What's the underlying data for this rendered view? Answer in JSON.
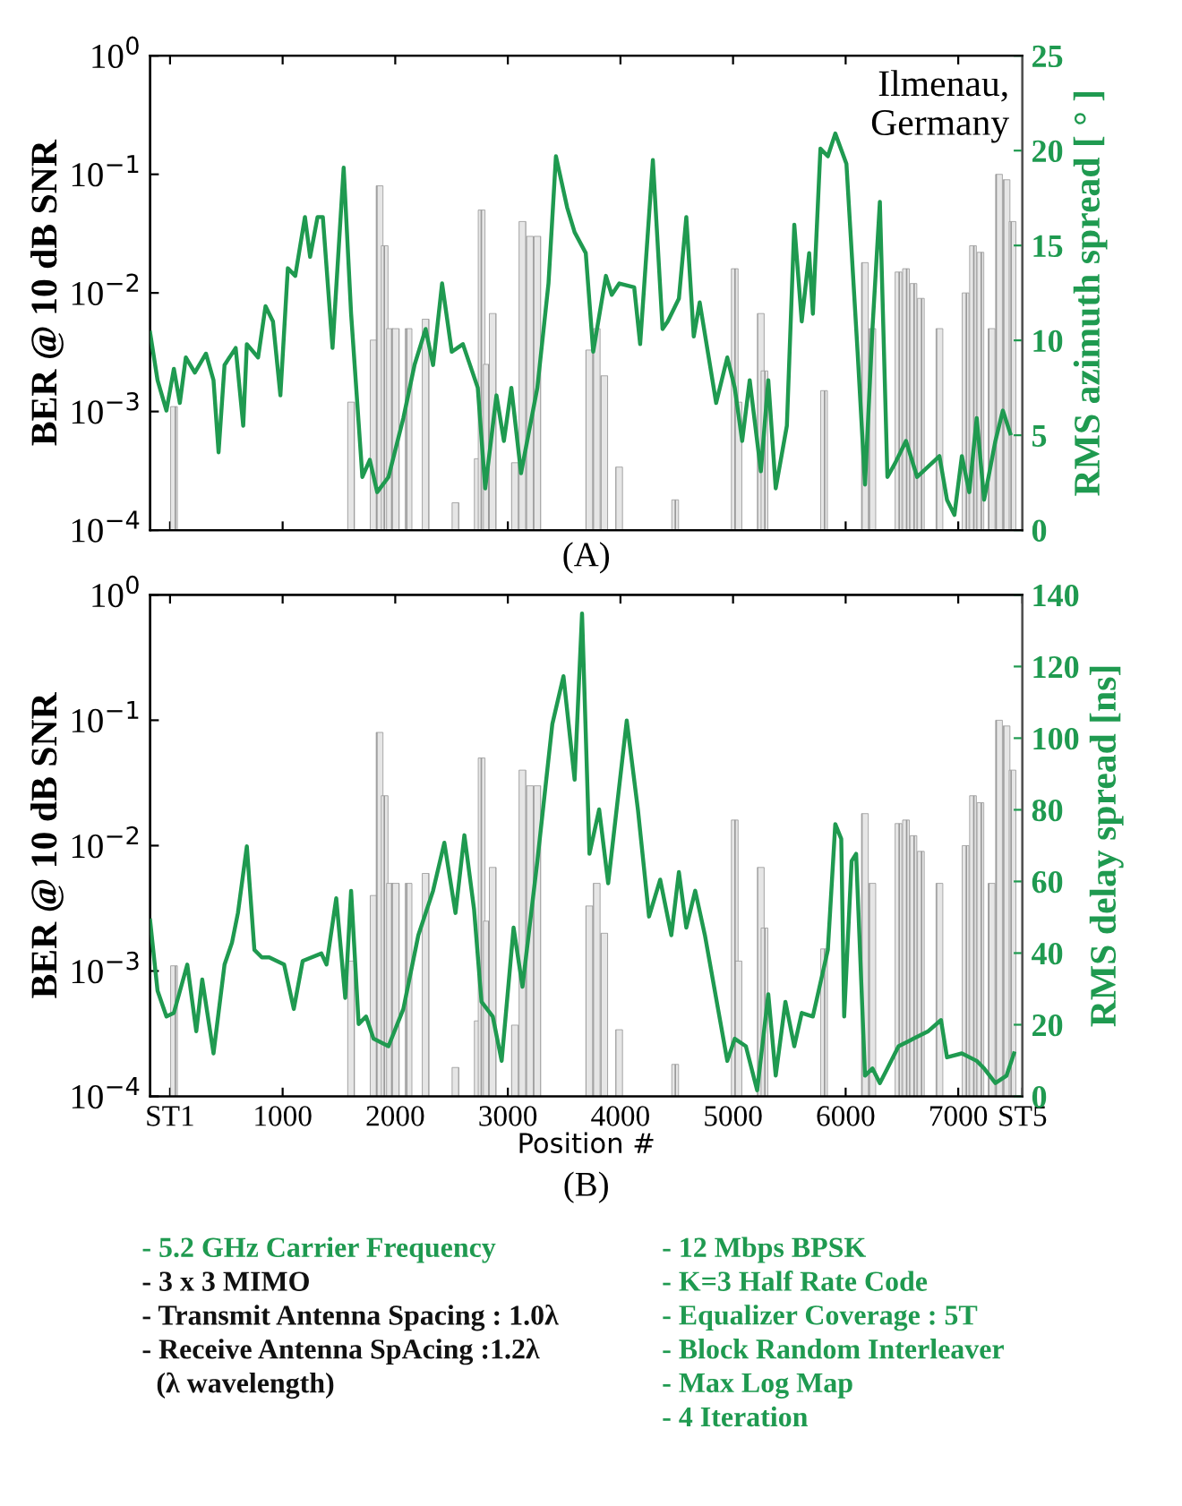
{
  "chart_data": [
    {
      "type": "bar",
      "ylabel": "BER @ 10 dB SNR",
      "y2label": "RMS azimuth spread [ ° ]",
      "annotations": [
        "Ilmenau,\nGermany",
        "(A)"
      ],
      "xlim": [
        -177,
        7570
      ],
      "xticks": [
        {
          "value": 0,
          "label": null
        },
        {
          "value": 1000,
          "label": null
        },
        {
          "value": 2000,
          "label": null
        },
        {
          "value": 3000,
          "label": null
        },
        {
          "value": 4000,
          "label": null
        },
        {
          "value": 5000,
          "label": null
        },
        {
          "value": 6000,
          "label": null
        },
        {
          "value": 7000,
          "label": null
        }
      ],
      "log": "y",
      "ylim": [
        0.0001,
        1
      ],
      "yticks": [
        {
          "value": 0.0001,
          "label": "10$^{−4}$"
        },
        {
          "value": 0.001,
          "label": "10$^{−3}$"
        },
        {
          "value": 0.01,
          "label": "10$^{−2}$"
        },
        {
          "value": 0.1,
          "label": "10$^{−1}$"
        },
        {
          "value": 1,
          "label": "10$^{0}$"
        }
      ],
      "y2lim": [
        0,
        25
      ],
      "y2ticks": [
        0,
        5,
        10,
        15,
        20,
        25
      ],
      "tick_labels": "y",
      "grid": false,
      "legend": false,
      "series": [
        {
          "type": "bar",
          "color": "#9a9a9a",
          "x": [
            35,
            1608,
            1808,
            1861,
            1906,
            1953,
            2005,
            2118,
            2270,
            2535,
            2733,
            2767,
            2813,
            2866,
            3063,
            3130,
            3196,
            3262,
            3723,
            3789,
            3856,
            3988,
            4486,
            5015,
            5048,
            5246,
            5279,
            5808,
            6171,
            6237,
            6469,
            6536,
            6602,
            6668,
            6833,
            7065,
            7131,
            7197,
            7296,
            7362,
            7429,
            7482
          ],
          "values": [
            0.0011,
            0.0012,
            0.004,
            0.08,
            0.025,
            0.005,
            0.005,
            0.005,
            0.006,
            0.00017,
            0.0004,
            0.05,
            0.0025,
            0.0067,
            0.00037,
            0.04,
            0.03,
            0.03,
            0.0033,
            0.005,
            0.002,
            0.00034,
            0.00018,
            0.016,
            0.0012,
            0.0067,
            0.0022,
            0.0015,
            0.018,
            0.005,
            0.015,
            0.016,
            0.012,
            0.009,
            0.005,
            0.01,
            0.025,
            0.022,
            0.005,
            0.1,
            0.09,
            0.04
          ]
        },
        {
          "type": "line",
          "axis": "y2",
          "color": "#1f9a50",
          "x": [
            -177,
            -111,
            -32,
            34,
            87,
            140,
            220,
            319,
            386,
            431,
            484,
            583,
            650,
            682,
            782,
            848,
            914,
            980,
            1046,
            1112,
            1198,
            1244,
            1310,
            1357,
            1443,
            1542,
            1608,
            1708,
            1774,
            1840,
            1940,
            2072,
            2171,
            2270,
            2336,
            2416,
            2502,
            2601,
            2733,
            2799,
            2899,
            2965,
            3031,
            3117,
            3262,
            3361,
            3427,
            3527,
            3593,
            3692,
            3758,
            3871,
            3923,
            3990,
            4122,
            4175,
            4288,
            4374,
            4420,
            4519,
            4585,
            4651,
            4704,
            4784,
            4850,
            4949,
            5015,
            5081,
            5148,
            5247,
            5313,
            5379,
            5478,
            5544,
            5610,
            5676,
            5709,
            5776,
            5842,
            5908,
            6007,
            6106,
            6172,
            6238,
            6304,
            6371,
            6437,
            6536,
            6635,
            6833,
            6900,
            6966,
            7032,
            7098,
            7164,
            7230,
            7330,
            7396,
            7462
          ],
          "values": [
            10.4,
            7.9,
            6.3,
            8.5,
            6.7,
            9.1,
            8.3,
            9.3,
            7.9,
            4.1,
            8.7,
            9.6,
            5.5,
            9.8,
            9.1,
            11.8,
            11.0,
            7.1,
            13.8,
            13.4,
            16.5,
            14.4,
            16.5,
            16.5,
            9.6,
            19.1,
            11.4,
            2.8,
            3.7,
            2.0,
            2.8,
            5.9,
            8.7,
            10.6,
            8.7,
            13.0,
            9.4,
            9.8,
            7.5,
            2.2,
            7.1,
            4.7,
            7.5,
            3.0,
            7.5,
            13.0,
            19.7,
            17.0,
            15.7,
            14.6,
            9.4,
            13.4,
            12.4,
            13.0,
            12.8,
            9.8,
            19.5,
            10.6,
            11.0,
            12.2,
            16.5,
            10.2,
            12.0,
            9.1,
            6.7,
            9.1,
            7.5,
            4.7,
            7.9,
            3.1,
            7.9,
            2.2,
            5.5,
            16.1,
            11.0,
            14.6,
            11.4,
            20.1,
            19.7,
            20.9,
            19.3,
            9.4,
            2.4,
            10.6,
            17.3,
            2.8,
            3.5,
            4.7,
            2.8,
            3.9,
            1.6,
            0.8,
            3.9,
            2.0,
            5.9,
            1.6,
            4.7,
            6.3,
            5.1
          ]
        }
      ]
    },
    {
      "type": "bar",
      "ylabel": "BER @ 10 dB SNR",
      "y2label": "RMS delay spread [ns]",
      "xlabel": "Position #",
      "annotations": [
        "(B)"
      ],
      "xlim": [
        -177,
        7570
      ],
      "xticks": [
        {
          "value": 0,
          "label": "ST1"
        },
        1000,
        2000,
        3000,
        4000,
        5000,
        6000,
        7000,
        {
          "value": 7570,
          "label": "ST5"
        }
      ],
      "log": "y",
      "ylim": [
        0.0001,
        1
      ],
      "yticks": [
        {
          "value": 0.0001,
          "label": "10$^{−4}$"
        },
        {
          "value": 0.001,
          "label": "10$^{−3}$"
        },
        {
          "value": 0.01,
          "label": "10$^{−2}$"
        },
        {
          "value": 0.1,
          "label": "10$^{−1}$"
        },
        {
          "value": 1,
          "label": "10$^{0}$"
        }
      ],
      "y2lim": [
        0,
        140
      ],
      "y2ticks": [
        0,
        20,
        40,
        60,
        80,
        100,
        120,
        140
      ],
      "grid": false,
      "legend": false,
      "series": [
        {
          "type": "bar",
          "color": "#9a9a9a",
          "x": [
            35,
            1608,
            1808,
            1861,
            1906,
            1953,
            2005,
            2118,
            2270,
            2535,
            2733,
            2767,
            2813,
            2866,
            3063,
            3130,
            3196,
            3262,
            3723,
            3789,
            3856,
            3988,
            4486,
            5015,
            5048,
            5246,
            5279,
            5808,
            6171,
            6237,
            6469,
            6536,
            6602,
            6668,
            6833,
            7065,
            7131,
            7197,
            7296,
            7362,
            7429,
            7482
          ],
          "values": [
            0.0011,
            0.0012,
            0.004,
            0.08,
            0.025,
            0.005,
            0.005,
            0.005,
            0.006,
            0.00017,
            0.0004,
            0.05,
            0.0025,
            0.0067,
            0.00037,
            0.04,
            0.03,
            0.03,
            0.0033,
            0.005,
            0.002,
            0.00034,
            0.00018,
            0.016,
            0.0012,
            0.0067,
            0.0022,
            0.0015,
            0.018,
            0.005,
            0.015,
            0.016,
            0.012,
            0.009,
            0.005,
            0.01,
            0.025,
            0.022,
            0.005,
            0.1,
            0.09,
            0.04
          ]
        },
        {
          "type": "line",
          "axis": "y2",
          "color": "#1f9a50",
          "x": [
            -177,
            -111,
            -32,
            34,
            153,
            233,
            286,
            386,
            484,
            550,
            603,
            682,
            749,
            815,
            881,
            1013,
            1099,
            1178,
            1344,
            1390,
            1476,
            1556,
            1608,
            1675,
            1741,
            1807,
            1940,
            2072,
            2205,
            2336,
            2436,
            2535,
            2614,
            2700,
            2766,
            2866,
            2945,
            3051,
            3130,
            3262,
            3395,
            3494,
            3593,
            3659,
            3725,
            3811,
            3891,
            4056,
            4155,
            4254,
            4353,
            4452,
            4519,
            4585,
            4664,
            4750,
            4949,
            5015,
            5114,
            5214,
            5313,
            5379,
            5465,
            5544,
            5610,
            5709,
            5842,
            5908,
            5961,
            5987,
            6053,
            6093,
            6172,
            6238,
            6304,
            6371,
            6470,
            6602,
            6734,
            6847,
            6900,
            7032,
            7164,
            7230,
            7330,
            7429,
            7495
          ],
          "values": [
            49.1,
            29.5,
            22.3,
            23.3,
            36.8,
            18.2,
            32.6,
            12.0,
            36.8,
            42.9,
            51.2,
            69.8,
            40.9,
            38.8,
            38.8,
            36.8,
            24.4,
            37.8,
            39.9,
            36.8,
            55.3,
            27.5,
            57.4,
            20.2,
            22.3,
            16.1,
            14.0,
            24.4,
            45.0,
            57.4,
            70.8,
            51.2,
            72.9,
            52.2,
            26.4,
            22.3,
            9.9,
            47.1,
            30.6,
            65.7,
            103.9,
            117.3,
            88.4,
            134.8,
            67.7,
            80.1,
            59.5,
            104.9,
            80.1,
            50.2,
            60.5,
            45.0,
            62.6,
            47.1,
            57.4,
            45.0,
            9.9,
            16.1,
            14.0,
            1.7,
            28.5,
            5.8,
            26.4,
            14.0,
            23.3,
            22.3,
            40.9,
            76.0,
            71.9,
            22.3,
            65.7,
            67.7,
            5.8,
            7.8,
            3.7,
            7.8,
            14.0,
            16.1,
            18.2,
            21.3,
            10.9,
            12.0,
            9.9,
            7.8,
            3.7,
            5.8,
            12.0
          ]
        }
      ]
    },
    {
      "type": "other",
      "annotations": [
        "- 5.2 GHz Carrier Frequency",
        "- 3 x 3 MIMO",
        "- Transmit Antenna Spacing : 1.0λ",
        "- Receive Antenna SpAcing :1.2λ",
        "  (λ wavelength)"
      ],
      "colors": [
        "#1f9a50",
        "#111111",
        "#111111",
        "#111111",
        "#111111"
      ]
    },
    {
      "type": "other",
      "annotations": [
        "- 12 Mbps BPSK",
        "- K=3 Half Rate Code",
        "- Equalizer Coverage : 5T",
        "- Block Random Interleaver",
        "- Max Log Map",
        "- 4 Iteration"
      ],
      "colors": [
        "#1f9a50",
        "#1f9a50",
        "#1f9a50",
        "#1f9a50",
        "#1f9a50",
        "#1f9a50"
      ]
    }
  ]
}
